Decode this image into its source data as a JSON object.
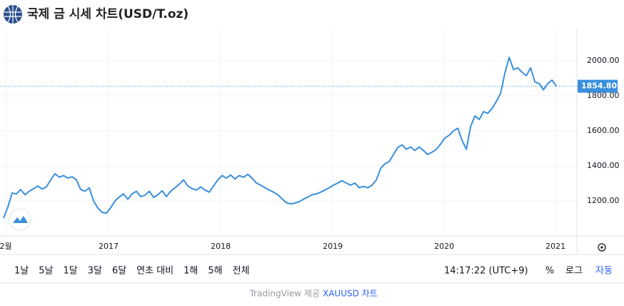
{
  "chart_data": {
    "type": "line",
    "title": "국제 금 시세 차트(USD/T.oz)",
    "series": [
      {
        "color": "#3a8fdc",
        "values": [
          1102,
          1165,
          1245,
          1240,
          1265,
          1235,
          1255,
          1270,
          1285,
          1268,
          1280,
          1320,
          1355,
          1335,
          1345,
          1330,
          1338,
          1320,
          1265,
          1255,
          1275,
          1200,
          1160,
          1135,
          1130,
          1160,
          1200,
          1222,
          1240,
          1210,
          1240,
          1255,
          1225,
          1232,
          1255,
          1220,
          1235,
          1258,
          1225,
          1255,
          1275,
          1295,
          1320,
          1285,
          1270,
          1262,
          1280,
          1262,
          1250,
          1285,
          1320,
          1345,
          1330,
          1348,
          1325,
          1345,
          1335,
          1352,
          1330,
          1302,
          1290,
          1275,
          1262,
          1250,
          1235,
          1212,
          1190,
          1183,
          1188,
          1195,
          1210,
          1222,
          1235,
          1240,
          1250,
          1262,
          1275,
          1290,
          1302,
          1315,
          1302,
          1290,
          1302,
          1275,
          1283,
          1275,
          1290,
          1320,
          1385,
          1412,
          1425,
          1465,
          1505,
          1520,
          1495,
          1508,
          1488,
          1508,
          1488,
          1465,
          1478,
          1495,
          1525,
          1560,
          1575,
          1600,
          1615,
          1545,
          1495,
          1625,
          1685,
          1665,
          1710,
          1700,
          1728,
          1768,
          1815,
          1930,
          2020,
          1950,
          1960,
          1935,
          1915,
          1960,
          1880,
          1870,
          1835,
          1870,
          1890,
          1854.8
        ]
      }
    ],
    "last_price": {
      "value": 1854.8,
      "label": "1854.80"
    },
    "xlim": [
      0,
      133.8
    ],
    "xticks": [
      {
        "value": 0.5,
        "label": "2월"
      },
      {
        "value": 24.5,
        "label": "2017"
      },
      {
        "value": 50.67,
        "label": "2018"
      },
      {
        "value": 76.83,
        "label": "2019"
      },
      {
        "value": 102.83,
        "label": "2020"
      },
      {
        "value": 128.83,
        "label": "2021"
      }
    ],
    "ylim": [
      1000,
      2184
    ],
    "yticks": [
      {
        "value": 1200,
        "label": "1200.00"
      },
      {
        "value": 1400,
        "label": "1400.00"
      },
      {
        "value": 1600,
        "label": "1600.00"
      },
      {
        "value": 1800,
        "label": "1800.00"
      },
      {
        "value": 2000,
        "label": "2000.00"
      }
    ],
    "grid": true
  },
  "toolbar": {
    "ranges": [
      "1날",
      "5날",
      "1달",
      "3달",
      "6달",
      "연초 대비",
      "1해",
      "5해",
      "전체"
    ],
    "time": "14:17:22 (UTC+9)",
    "percent": "%",
    "log": "로그",
    "auto": "자동"
  },
  "footer": {
    "provider": "TradingView 제공",
    "link": "XAUUSD 차트"
  }
}
